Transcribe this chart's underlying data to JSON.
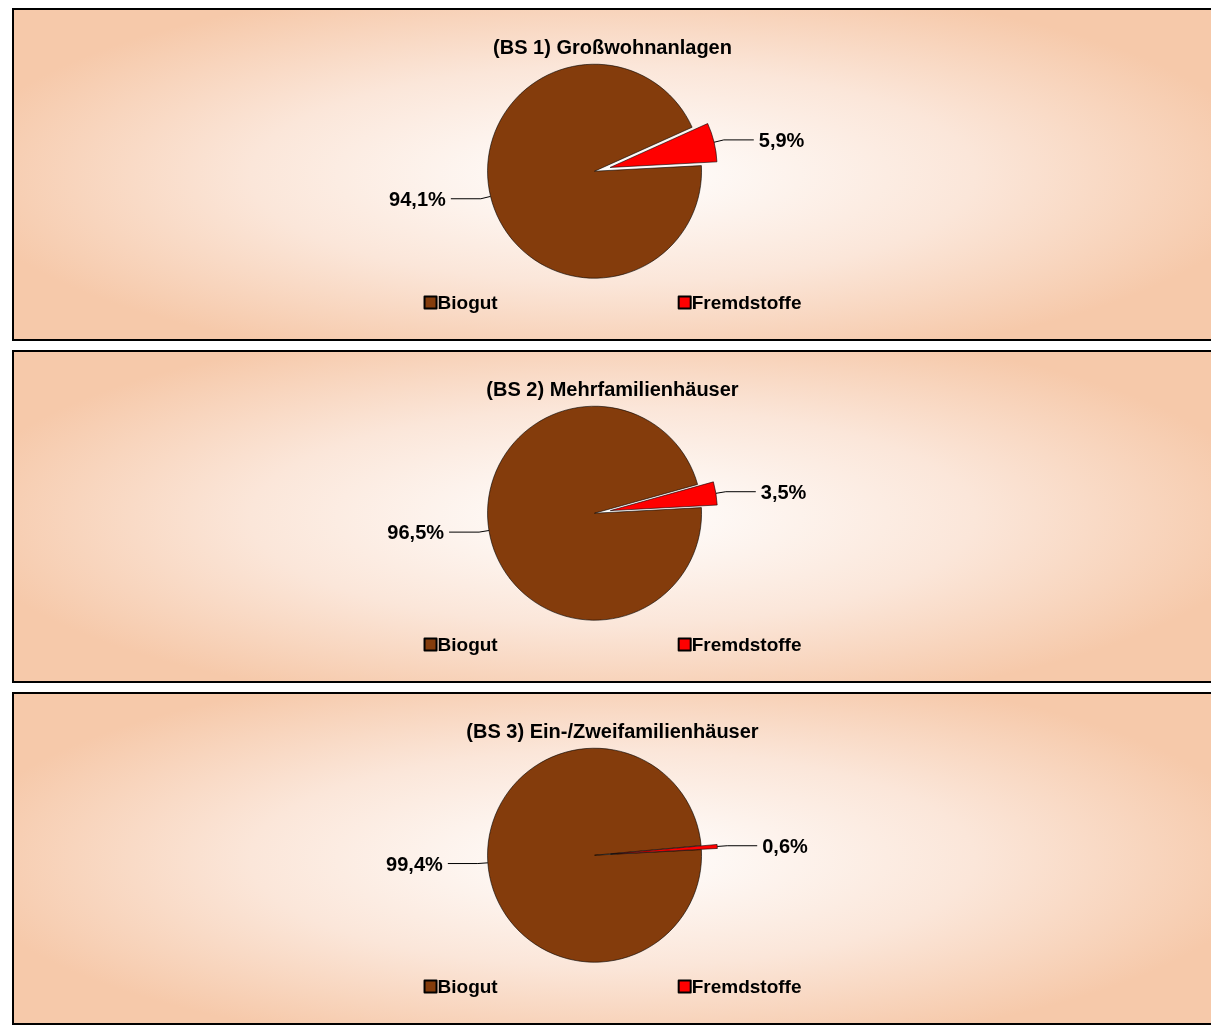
{
  "chart_data": [
    {
      "type": "pie",
      "title": "(BS 1) Großwohnanlagen",
      "categories": [
        "Biogut",
        "Fremdstoffe"
      ],
      "values": [
        94.1,
        5.9
      ],
      "colors": [
        "#843c0c",
        "#ff0000"
      ],
      "value_labels": [
        "94,1%",
        "5,9%"
      ],
      "legend": "bottom"
    },
    {
      "type": "pie",
      "title": "(BS 2) Mehrfamilienhäuser",
      "categories": [
        "Biogut",
        "Fremdstoffe"
      ],
      "values": [
        96.5,
        3.5
      ],
      "colors": [
        "#843c0c",
        "#ff0000"
      ],
      "value_labels": [
        "96,5%",
        "3,5%"
      ],
      "legend": "bottom"
    },
    {
      "type": "pie",
      "title": "(BS 3) Ein-/Zweifamilienhäuser",
      "categories": [
        "Biogut",
        "Fremdstoffe"
      ],
      "values": [
        99.4,
        0.6
      ],
      "colors": [
        "#843c0c",
        "#ff0000"
      ],
      "value_labels": [
        "99,4%",
        "0,6%"
      ],
      "legend": "bottom"
    }
  ]
}
